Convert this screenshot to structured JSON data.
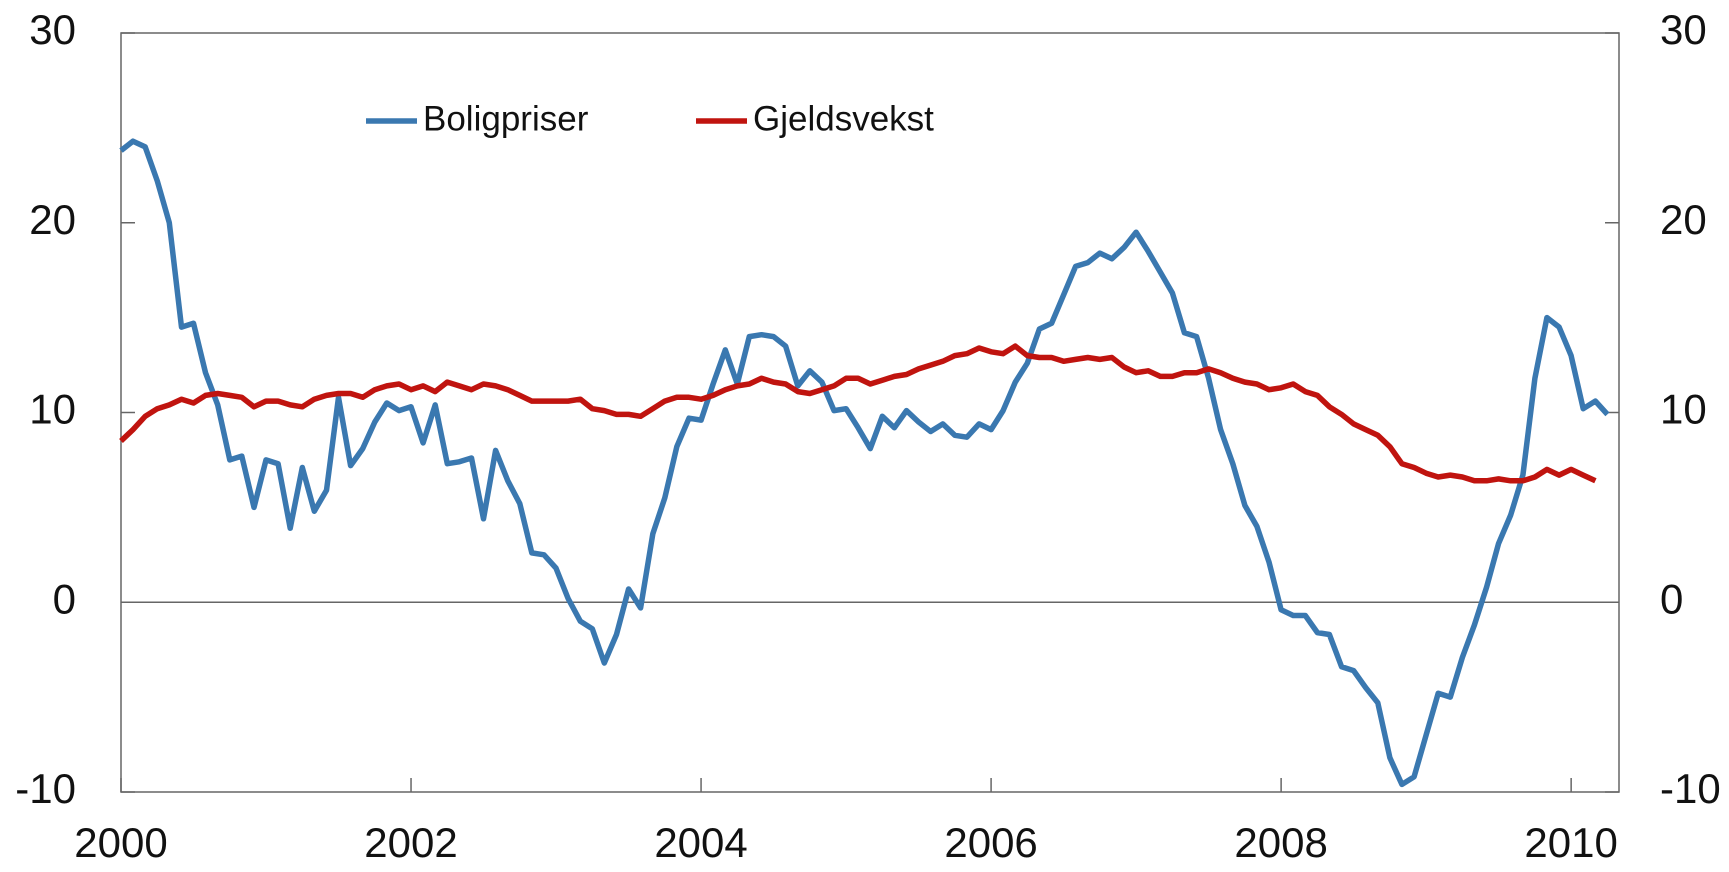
{
  "chart_data": {
    "type": "line",
    "x": [
      2000,
      2000.083,
      2000.167,
      2000.25,
      2000.333,
      2000.417,
      2000.5,
      2000.583,
      2000.667,
      2000.75,
      2000.833,
      2000.917,
      2001,
      2001.083,
      2001.167,
      2001.25,
      2001.333,
      2001.417,
      2001.5,
      2001.583,
      2001.667,
      2001.75,
      2001.833,
      2001.917,
      2002,
      2002.083,
      2002.167,
      2002.25,
      2002.333,
      2002.417,
      2002.5,
      2002.583,
      2002.667,
      2002.75,
      2002.833,
      2002.917,
      2003,
      2003.083,
      2003.167,
      2003.25,
      2003.333,
      2003.417,
      2003.5,
      2003.583,
      2003.667,
      2003.75,
      2003.833,
      2003.917,
      2004,
      2004.083,
      2004.167,
      2004.25,
      2004.333,
      2004.417,
      2004.5,
      2004.583,
      2004.667,
      2004.75,
      2004.833,
      2004.917,
      2005,
      2005.083,
      2005.167,
      2005.25,
      2005.333,
      2005.417,
      2005.5,
      2005.583,
      2005.667,
      2005.75,
      2005.833,
      2005.917,
      2006,
      2006.083,
      2006.167,
      2006.25,
      2006.333,
      2006.417,
      2006.5,
      2006.583,
      2006.667,
      2006.75,
      2006.833,
      2006.917,
      2007,
      2007.083,
      2007.167,
      2007.25,
      2007.333,
      2007.417,
      2007.5,
      2007.583,
      2007.667,
      2007.75,
      2007.833,
      2007.917,
      2008,
      2008.083,
      2008.167,
      2008.25,
      2008.333,
      2008.417,
      2008.5,
      2008.583,
      2008.667,
      2008.75,
      2008.833,
      2008.917,
      2009,
      2009.083,
      2009.167,
      2009.25,
      2009.333,
      2009.417,
      2009.5,
      2009.583,
      2009.667,
      2009.75,
      2009.833,
      2009.917,
      2010,
      2010.083,
      2010.167,
      2010.25
    ],
    "series": [
      {
        "name": "Boligpriser",
        "color": "#3a78b0",
        "values": [
          23.8,
          24.3,
          24.0,
          22.2,
          20.0,
          14.5,
          14.7,
          12.1,
          10.4,
          7.5,
          7.7,
          5.0,
          7.5,
          7.3,
          3.9,
          7.1,
          4.8,
          5.9,
          10.8,
          7.2,
          8.1,
          9.5,
          10.5,
          10.1,
          10.3,
          8.4,
          10.4,
          7.3,
          7.4,
          7.6,
          4.4,
          8.0,
          6.4,
          5.2,
          2.6,
          2.5,
          1.8,
          0.2,
          -1.0,
          -1.4,
          -3.2,
          -1.7,
          0.7,
          -0.3,
          3.6,
          5.5,
          8.2,
          9.7,
          9.6,
          11.5,
          13.3,
          11.5,
          14.0,
          14.1,
          14.0,
          13.5,
          11.4,
          12.2,
          11.6,
          10.1,
          10.2,
          9.2,
          8.1,
          9.8,
          9.2,
          10.1,
          9.5,
          9.0,
          9.4,
          8.8,
          8.7,
          9.4,
          9.1,
          10.1,
          11.6,
          12.6,
          14.4,
          14.7,
          16.2,
          17.7,
          17.9,
          18.4,
          18.1,
          18.7,
          19.5,
          18.5,
          17.4,
          16.3,
          14.2,
          14.0,
          11.8,
          9.1,
          7.3,
          5.1,
          4.0,
          2.1,
          -0.4,
          -0.7,
          -0.7,
          -1.6,
          -1.7,
          -3.4,
          -3.6,
          -4.5,
          -5.3,
          -8.2,
          -9.6,
          -9.2,
          -7.0,
          -4.8,
          -5.0,
          -2.9,
          -1.2,
          0.8,
          3.1,
          4.6,
          6.7,
          11.8,
          15.0,
          14.5,
          13.0,
          10.2,
          10.6,
          9.9
        ]
      },
      {
        "name": "Gjeldsvekst",
        "color": "#c0140f",
        "values": [
          8.5,
          9.1,
          9.8,
          10.2,
          10.4,
          10.7,
          10.5,
          10.9,
          11.0,
          10.9,
          10.8,
          10.3,
          10.6,
          10.6,
          10.4,
          10.3,
          10.7,
          10.9,
          11.0,
          11.0,
          10.8,
          11.2,
          11.4,
          11.5,
          11.2,
          11.4,
          11.1,
          11.6,
          11.4,
          11.2,
          11.5,
          11.4,
          11.2,
          10.9,
          10.6,
          10.6,
          10.6,
          10.6,
          10.7,
          10.2,
          10.1,
          9.9,
          9.9,
          9.8,
          10.2,
          10.6,
          10.8,
          10.8,
          10.7,
          10.9,
          11.2,
          11.4,
          11.5,
          11.8,
          11.6,
          11.5,
          11.1,
          11.0,
          11.2,
          11.4,
          11.8,
          11.8,
          11.5,
          11.7,
          11.9,
          12.0,
          12.3,
          12.5,
          12.7,
          13.0,
          13.1,
          13.4,
          13.2,
          13.1,
          13.5,
          13.0,
          12.9,
          12.9,
          12.7,
          12.8,
          12.9,
          12.8,
          12.9,
          12.4,
          12.1,
          12.2,
          11.9,
          11.9,
          12.1,
          12.1,
          12.3,
          12.1,
          11.8,
          11.6,
          11.5,
          11.2,
          11.3,
          11.5,
          11.1,
          10.9,
          10.3,
          9.9,
          9.4,
          9.1,
          8.8,
          8.2,
          7.3,
          7.1,
          6.8,
          6.6,
          6.7,
          6.6,
          6.4,
          6.4,
          6.5,
          6.4,
          6.4,
          6.6,
          7.0,
          6.7,
          7.0,
          6.7,
          6.4,
          null
        ]
      }
    ],
    "xlim": [
      2000,
      2010.33
    ],
    "xticks": [
      2000,
      2002,
      2004,
      2006,
      2008,
      2010
    ],
    "ylim": [
      -10,
      30
    ],
    "yticks": [
      -10,
      0,
      10,
      20,
      30
    ],
    "y2lim": [
      -10,
      30
    ],
    "y2ticks": [
      -10,
      0,
      10,
      20,
      30
    ],
    "legend": "upper center"
  }
}
